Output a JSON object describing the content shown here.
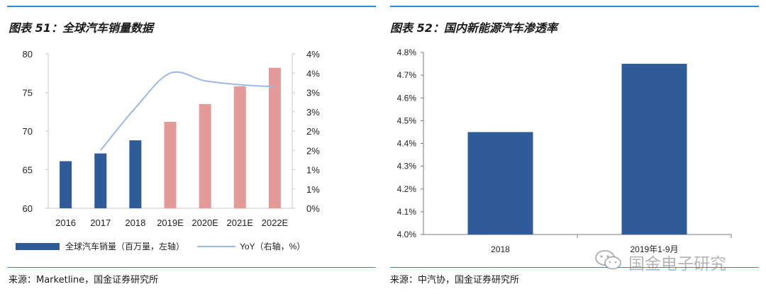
{
  "left": {
    "title": "图表 51：全球汽车销量数据",
    "source": "来源：Marketline，国金证券研究所",
    "chart_data": {
      "type": "bar",
      "categories": [
        "2016",
        "2017",
        "2018",
        "2019E",
        "2020E",
        "2021E",
        "2022E"
      ],
      "series": [
        {
          "name": "全球汽车销量（百万量，左轴）",
          "type": "bar",
          "axis": "left",
          "values": [
            66.1,
            67.1,
            68.8,
            71.2,
            73.5,
            75.8,
            78.2
          ],
          "colors": [
            "#2f5c99",
            "#2f5c99",
            "#2f5c99",
            "#e59a9a",
            "#e59a9a",
            "#e59a9a",
            "#e59a9a"
          ]
        },
        {
          "name": "YoY（右轴，%）",
          "type": "line",
          "axis": "right",
          "values": [
            null,
            1.5,
            2.6,
            3.5,
            3.3,
            3.2,
            3.15
          ],
          "color": "#9cb9e3"
        }
      ],
      "y_left": {
        "min": 60,
        "max": 80,
        "ticks": [
          "60",
          "65",
          "70",
          "75",
          "80"
        ]
      },
      "y_right": {
        "min": 0,
        "max": 4,
        "ticks": [
          "0%",
          "1%",
          "1%",
          "2%",
          "2%",
          "3%",
          "3%",
          "4%",
          "4%"
        ]
      },
      "legend_position": "bottom"
    }
  },
  "right": {
    "title": "图表 52：国内新能源汽车渗透率",
    "source": "来源：中汽协，国金证券研究所",
    "chart_data": {
      "type": "bar",
      "categories": [
        "2018",
        "2019年1-9月"
      ],
      "values": [
        4.45,
        4.75
      ],
      "color": "#2f5c99",
      "y": {
        "min": 4.0,
        "max": 4.8,
        "ticks": [
          "4.0%",
          "4.1%",
          "4.2%",
          "4.3%",
          "4.4%",
          "4.5%",
          "4.6%",
          "4.7%",
          "4.8%"
        ]
      }
    }
  },
  "watermark": {
    "text": "国金电子研究"
  },
  "colors": {
    "rule": "#3d86c6",
    "bar_actual": "#2f5c99",
    "bar_forecast": "#e59a9a",
    "line": "#9cb9e3"
  }
}
